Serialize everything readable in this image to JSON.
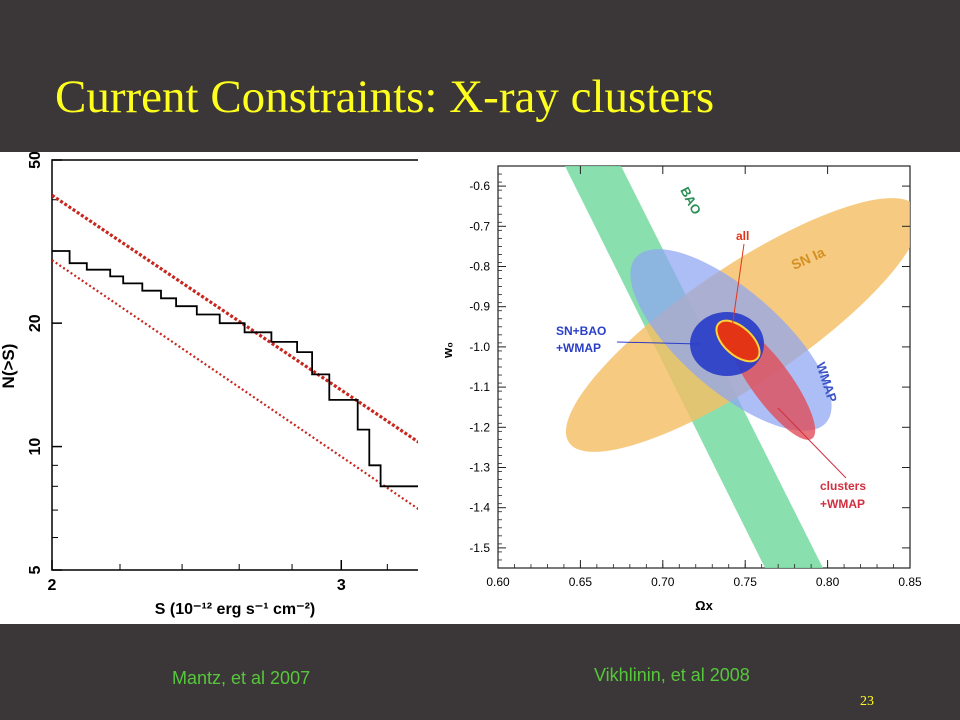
{
  "slide": {
    "title": "Current Constraints: X-ray clusters",
    "caption_left": "Mantz, et al 2007",
    "caption_right": "Vikhlinin, et al 2008",
    "page_number": "23"
  },
  "colors": {
    "background": "#3b3738",
    "title": "#ffff1e",
    "caption": "#56c73a",
    "step_line": "#000000",
    "model_lines": "#c8261e",
    "bao": "#7ddca6",
    "sn": "#f4c065",
    "wmap": "#8da5f2",
    "sn_bao_wmap": "#2a3ec8",
    "clusters_wmap": "#e24a56",
    "all": "#e33515"
  },
  "chart_data": [
    {
      "type": "line",
      "xlabel": "S (10⁻¹² erg s⁻¹ cm⁻²)",
      "ylabel": "N(>S)",
      "xscale": "log",
      "yscale": "log",
      "xlim": [
        2.0,
        3.35
      ],
      "ylim": [
        5,
        50
      ],
      "x_ticks": [
        "2",
        "3"
      ],
      "y_ticks": [
        "5",
        "10",
        "20",
        "50"
      ],
      "series": [
        {
          "style": "step",
          "color": "#000000",
          "x": [
            2.0,
            2.05,
            2.1,
            2.17,
            2.21,
            2.27,
            2.33,
            2.38,
            2.45,
            2.53,
            2.62,
            2.72,
            2.82,
            2.88,
            2.95,
            3.07,
            3.12,
            3.17,
            3.35
          ],
          "y": [
            30,
            28,
            27,
            26,
            25,
            24,
            23,
            22,
            21,
            20,
            19,
            18,
            17,
            15,
            13,
            11,
            9,
            8,
            8
          ]
        },
        {
          "style": "dashed",
          "color": "#c8261e",
          "x": [
            2.0,
            3.35
          ],
          "y": [
            41,
            10.2
          ]
        },
        {
          "style": "dotted",
          "color": "#c8261e",
          "x": [
            2.0,
            3.35
          ],
          "y": [
            28.5,
            7.0
          ]
        }
      ]
    },
    {
      "type": "contour",
      "xlabel": "Ωx",
      "ylabel": "w₀",
      "xlim": [
        0.6,
        0.85
      ],
      "ylim": [
        -1.55,
        -0.55
      ],
      "x_ticks": [
        "0.60",
        "0.65",
        "0.70",
        "0.75",
        "0.80",
        "0.85"
      ],
      "y_ticks": [
        "-0.6",
        "-0.7",
        "-0.8",
        "-0.9",
        "-1.0",
        "-1.1",
        "-1.2",
        "-1.3",
        "-1.4",
        "-1.5"
      ],
      "regions": [
        {
          "label": "BAO",
          "color": "#7ddca6"
        },
        {
          "label": "SN Ia",
          "color": "#f4c065"
        },
        {
          "label": "WMAP",
          "color": "#8da5f2"
        },
        {
          "label": "SN+BAO +WMAP",
          "color": "#2a3ec8"
        },
        {
          "label": "clusters +WMAP",
          "color": "#e24a56"
        },
        {
          "label": "all",
          "color": "#e33515"
        }
      ]
    }
  ]
}
